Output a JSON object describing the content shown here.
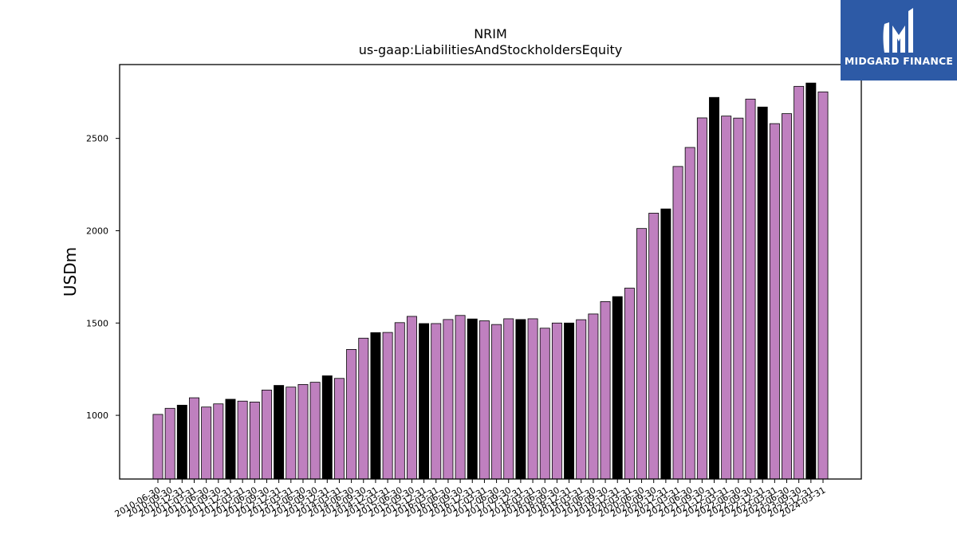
{
  "chart_data": {
    "type": "bar",
    "title": "NRIM",
    "subtitle": "us-gaap:LiabilitiesAndStockholdersEquity",
    "xlabel": "",
    "ylabel": "USDm",
    "ylim": [
      655,
      2900
    ],
    "yticks": [
      1000,
      1500,
      2000,
      2500
    ],
    "grid": false,
    "bar_color": "#bf80bf",
    "highlight_color": "#000000",
    "categories": [
      "2010-06-30",
      "2010-09-30",
      "2010-12-31",
      "2011-03-31",
      "2011-06-30",
      "2011-09-30",
      "2011-12-31",
      "2012-03-31",
      "2012-06-30",
      "2012-09-30",
      "2012-12-31",
      "2013-03-31",
      "2013-06-30",
      "2013-09-30",
      "2013-12-31",
      "2014-03-31",
      "2014-06-30",
      "2014-09-30",
      "2014-12-31",
      "2015-03-31",
      "2015-06-30",
      "2015-09-30",
      "2015-12-31",
      "2016-03-31",
      "2016-06-30",
      "2016-09-30",
      "2016-12-31",
      "2017-03-31",
      "2017-06-30",
      "2017-09-30",
      "2017-12-31",
      "2018-03-31",
      "2018-06-30",
      "2018-09-30",
      "2018-12-31",
      "2019-03-31",
      "2019-06-30",
      "2019-09-30",
      "2019-12-31",
      "2020-03-31",
      "2020-06-30",
      "2020-09-30",
      "2020-12-31",
      "2021-03-31",
      "2021-06-30",
      "2021-09-30",
      "2021-12-31",
      "2022-03-31",
      "2022-06-30",
      "2022-09-30",
      "2022-12-31",
      "2023-03-31",
      "2023-06-30",
      "2023-09-30",
      "2023-12-31",
      "2024-03-31"
    ],
    "values": [
      1005,
      1038,
      1055,
      1095,
      1045,
      1062,
      1087,
      1077,
      1072,
      1137,
      1162,
      1153,
      1167,
      1179,
      1214,
      1200,
      1357,
      1418,
      1448,
      1449,
      1502,
      1536,
      1497,
      1497,
      1519,
      1541,
      1522,
      1512,
      1492,
      1523,
      1519,
      1523,
      1472,
      1500,
      1500,
      1518,
      1549,
      1616,
      1643,
      1689,
      2012,
      2095,
      2118,
      2348,
      2451,
      2611,
      2722,
      2621,
      2610,
      2713,
      2670,
      2580,
      2634,
      2782,
      2800,
      2752
    ],
    "highlighted": [
      false,
      false,
      true,
      false,
      false,
      false,
      true,
      false,
      false,
      false,
      true,
      false,
      false,
      false,
      true,
      false,
      false,
      false,
      true,
      false,
      false,
      false,
      true,
      false,
      false,
      false,
      true,
      false,
      false,
      false,
      true,
      false,
      false,
      false,
      true,
      false,
      false,
      false,
      true,
      false,
      false,
      false,
      true,
      false,
      false,
      false,
      true,
      false,
      false,
      false,
      true,
      false,
      false,
      false,
      true,
      false
    ]
  },
  "logo": {
    "text": "MIDGARD FINANCE",
    "color": "#2d5aa6"
  }
}
